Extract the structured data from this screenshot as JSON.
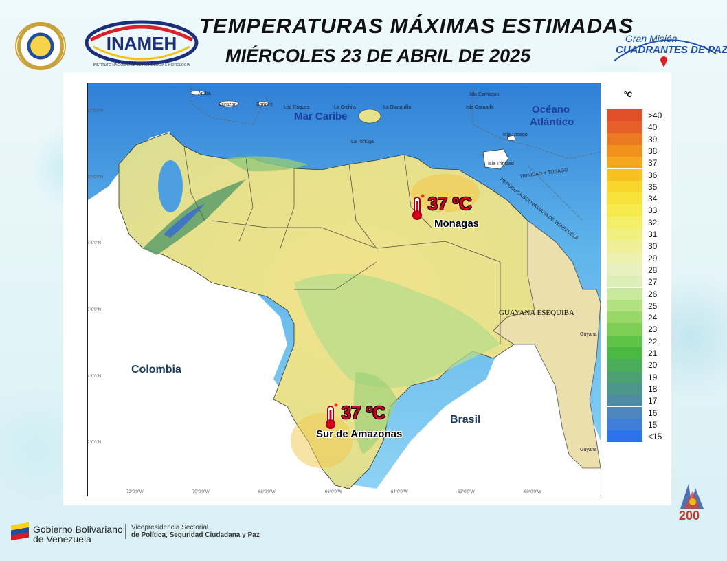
{
  "header": {
    "title": "TEMPERATURAS MÁXIMAS ESTIMADAS",
    "subtitle": "MIÉRCOLES 23 DE ABRIL DE 2025",
    "inameh_logo": "INAMEH",
    "inameh_caption": "INSTITUTO NACIONAL DE METEOROLOGÍA E HIDROLOGÍA",
    "gm_line1": "Gran Misión",
    "gm_line2": "CUADRANTES DE PAZ"
  },
  "map": {
    "sea_labels": {
      "caribe": "Mar Caribe",
      "atlantico_1": "Océano",
      "atlantico_2": "Atlántico"
    },
    "country_labels": {
      "colombia": "Colombia",
      "brasil": "Brasil",
      "guayana": "GUAYANA ESEQUIBA"
    },
    "small_labels": [
      "Aruba",
      "Curazao",
      "Bonaire",
      "Los Roques",
      "La Orchila",
      "La Blanquilla",
      "La Tortuga",
      "Isla Carriacou",
      "Isla Granada",
      "Isla Tobago",
      "Isla Trinidad",
      "TRINIDAD Y TOBAGO",
      "REPÚBLICA BOLIVARIANA DE VENEZUELA",
      "Guyana",
      "Guyana"
    ],
    "lat_ticks": [
      "12°0'0\"N",
      "10°0'0\"N",
      "8°0'0\"N",
      "6°0'0\"N",
      "4°0'0\"N",
      "2°0'0\"N"
    ],
    "lon_ticks": [
      "72°0'0\"W",
      "70°0'0\"W",
      "68°0'0\"W",
      "66°0'0\"W",
      "64°0'0\"W",
      "62°0'0\"W",
      "60°0'0\"W"
    ],
    "hotspots": [
      {
        "value": "37 ºC",
        "name": "Monagas"
      },
      {
        "value": "37 ºC",
        "name": "Sur de Amazonas"
      }
    ]
  },
  "legend": {
    "unit": "°C",
    "entries": [
      {
        "label": ">40",
        "color": "#e2502a"
      },
      {
        "label": "40",
        "color": "#e6612a"
      },
      {
        "label": "39",
        "color": "#ec7a22"
      },
      {
        "label": "38",
        "color": "#f2921e"
      },
      {
        "label": "37",
        "color": "#f4a81e"
      },
      {
        "label": "36",
        "color": "#f7c21f"
      },
      {
        "label": "35",
        "color": "#f8d52a"
      },
      {
        "label": "34",
        "color": "#f8e23a"
      },
      {
        "label": "33",
        "color": "#f6ea4c"
      },
      {
        "label": "32",
        "color": "#f3ef66"
      },
      {
        "label": "31",
        "color": "#f1f07e"
      },
      {
        "label": "30",
        "color": "#efef98"
      },
      {
        "label": "29",
        "color": "#eef0ad"
      },
      {
        "label": "28",
        "color": "#e9f0c0"
      },
      {
        "label": "27",
        "color": "#dcefb8"
      },
      {
        "label": "26",
        "color": "#c9ea9c"
      },
      {
        "label": "25",
        "color": "#b2e27f"
      },
      {
        "label": "24",
        "color": "#98d866"
      },
      {
        "label": "23",
        "color": "#7ccf54"
      },
      {
        "label": "22",
        "color": "#5ec447"
      },
      {
        "label": "21",
        "color": "#49b944"
      },
      {
        "label": "20",
        "color": "#49ad5a"
      },
      {
        "label": "19",
        "color": "#4ba172"
      },
      {
        "label": "18",
        "color": "#4c968a"
      },
      {
        "label": "17",
        "color": "#4e8ca4"
      },
      {
        "label": "16",
        "color": "#4d86bf"
      },
      {
        "label": "15",
        "color": "#3f7fd9"
      },
      {
        "label": "<15",
        "color": "#2a73ea"
      }
    ]
  },
  "footer": {
    "gob_line1": "Gobierno Bolivariano",
    "gob_line2": "de Venezuela",
    "vp_line1": "Vicepresidencia Sectorial",
    "vp_line2": "de Política, Seguridad Ciudadana y Paz",
    "bicentenario": "200"
  }
}
